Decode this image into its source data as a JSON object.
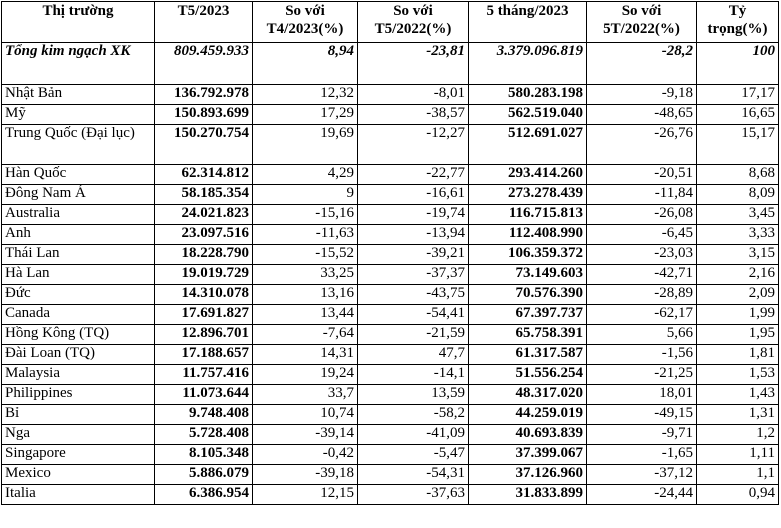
{
  "headers": [
    "Thị trường",
    "T5/2023",
    "So với T4/2023(%)",
    "So với T5/2022(%)",
    "5 tháng/2023",
    "So với 5T/2022(%)",
    "Tỷ trọng(%)"
  ],
  "total": {
    "name": "Tổng kim ngạch XK",
    "t5": "809.459.933",
    "vs_t4": "8,94",
    "vs_t5_2022": "-23,81",
    "five_months": "3.379.096.819",
    "vs_5t_2022": "-28,2",
    "share": "100"
  },
  "rows": [
    {
      "name": "Nhật Bản",
      "t5": "136.792.978",
      "vs_t4": "12,32",
      "vs_t5_2022": "-8,01",
      "five_months": "580.283.198",
      "vs_5t_2022": "-9,18",
      "share": "17,17"
    },
    {
      "name": "Mỹ",
      "t5": "150.893.699",
      "vs_t4": "17,29",
      "vs_t5_2022": "-38,57",
      "five_months": "562.519.040",
      "vs_5t_2022": "-48,65",
      "share": "16,65"
    },
    {
      "name": "Trung Quốc (Đại lục)",
      "t5": "150.270.754",
      "vs_t4": "19,69",
      "vs_t5_2022": "-12,27",
      "five_months": "512.691.027",
      "vs_5t_2022": "-26,76",
      "share": "15,17"
    },
    {
      "name": "Hàn Quốc",
      "t5": "62.314.812",
      "vs_t4": "4,29",
      "vs_t5_2022": "-22,77",
      "five_months": "293.414.260",
      "vs_5t_2022": "-20,51",
      "share": "8,68"
    },
    {
      "name": "Đông Nam Á",
      "t5": "58.185.354",
      "vs_t4": "9",
      "vs_t5_2022": "-16,61",
      "five_months": "273.278.439",
      "vs_5t_2022": "-11,84",
      "share": "8,09"
    },
    {
      "name": "Australia",
      "t5": "24.021.823",
      "vs_t4": "-15,16",
      "vs_t5_2022": "-19,74",
      "five_months": "116.715.813",
      "vs_5t_2022": "-26,08",
      "share": "3,45"
    },
    {
      "name": "Anh",
      "t5": "23.097.516",
      "vs_t4": "-11,63",
      "vs_t5_2022": "-13,94",
      "five_months": "112.408.990",
      "vs_5t_2022": "-6,45",
      "share": "3,33"
    },
    {
      "name": "Thái Lan",
      "t5": "18.228.790",
      "vs_t4": "-15,52",
      "vs_t5_2022": "-39,21",
      "five_months": "106.359.372",
      "vs_5t_2022": "-23,03",
      "share": "3,15"
    },
    {
      "name": "Hà Lan",
      "t5": "19.019.729",
      "vs_t4": "33,25",
      "vs_t5_2022": "-37,37",
      "five_months": "73.149.603",
      "vs_5t_2022": "-42,71",
      "share": "2,16"
    },
    {
      "name": "Đức",
      "t5": "14.310.078",
      "vs_t4": "13,16",
      "vs_t5_2022": "-43,75",
      "five_months": "70.576.390",
      "vs_5t_2022": "-28,89",
      "share": "2,09"
    },
    {
      "name": "Canada",
      "t5": "17.691.827",
      "vs_t4": "13,44",
      "vs_t5_2022": "-54,41",
      "five_months": "67.397.737",
      "vs_5t_2022": "-62,17",
      "share": "1,99"
    },
    {
      "name": "Hồng Kông (TQ)",
      "t5": "12.896.701",
      "vs_t4": "-7,64",
      "vs_t5_2022": "-21,59",
      "five_months": "65.758.391",
      "vs_5t_2022": "5,66",
      "share": "1,95"
    },
    {
      "name": "Đài Loan (TQ)",
      "t5": "17.188.657",
      "vs_t4": "14,31",
      "vs_t5_2022": "47,7",
      "five_months": "61.317.587",
      "vs_5t_2022": "-1,56",
      "share": "1,81"
    },
    {
      "name": "Malaysia",
      "t5": "11.757.416",
      "vs_t4": "19,24",
      "vs_t5_2022": "-14,1",
      "five_months": "51.556.254",
      "vs_5t_2022": "-21,25",
      "share": "1,53"
    },
    {
      "name": "Philippines",
      "t5": "11.073.644",
      "vs_t4": "33,7",
      "vs_t5_2022": "13,59",
      "five_months": "48.317.020",
      "vs_5t_2022": "18,01",
      "share": "1,43"
    },
    {
      "name": "Bỉ",
      "t5": "9.748.408",
      "vs_t4": "10,74",
      "vs_t5_2022": "-58,2",
      "five_months": "44.259.019",
      "vs_5t_2022": "-49,15",
      "share": "1,31"
    },
    {
      "name": "Nga",
      "t5": "5.728.408",
      "vs_t4": "-39,14",
      "vs_t5_2022": "-41,09",
      "five_months": "40.693.839",
      "vs_5t_2022": "-9,71",
      "share": "1,2"
    },
    {
      "name": "Singapore",
      "t5": "8.105.348",
      "vs_t4": "-0,42",
      "vs_t5_2022": "-5,47",
      "five_months": "37.399.067",
      "vs_5t_2022": "-1,65",
      "share": "1,11"
    },
    {
      "name": "Mexico",
      "t5": "5.886.079",
      "vs_t4": "-39,18",
      "vs_t5_2022": "-54,31",
      "five_months": "37.126.960",
      "vs_5t_2022": "-37,12",
      "share": "1,1"
    },
    {
      "name": "Italia",
      "t5": "6.386.954",
      "vs_t4": "12,15",
      "vs_t5_2022": "-37,63",
      "five_months": "31.833.899",
      "vs_5t_2022": "-24,44",
      "share": "0,94"
    }
  ]
}
